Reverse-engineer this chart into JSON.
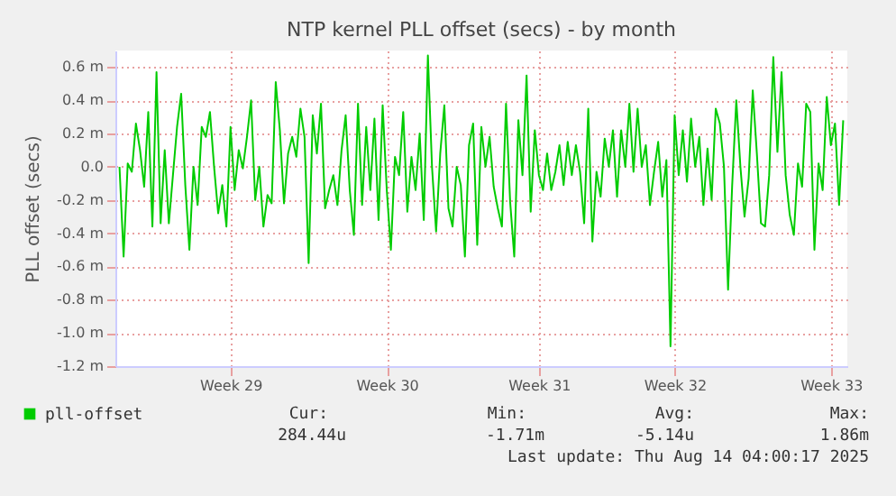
{
  "chart_data": {
    "type": "line",
    "title": "NTP kernel PLL offset (secs) - by month",
    "ylabel": "PLL offset (secs)",
    "categories": [
      null,
      null,
      null,
      null,
      null,
      null,
      null,
      null,
      null,
      null,
      null,
      null,
      null,
      null,
      null,
      null,
      null,
      null,
      null,
      null,
      null,
      null,
      null,
      null,
      null,
      null,
      null,
      "Week 29",
      null,
      null,
      null,
      null,
      null,
      null,
      null,
      null,
      null,
      null,
      null,
      null,
      null,
      null,
      null,
      null,
      null,
      null,
      null,
      null,
      null,
      null,
      null,
      null,
      null,
      null,
      null,
      null,
      null,
      null,
      null,
      null,
      null,
      null,
      null,
      null,
      null,
      "Week 30",
      null,
      null,
      null,
      null,
      null,
      null,
      null,
      null,
      null,
      null,
      null,
      null,
      null,
      null,
      null,
      null,
      null,
      null,
      null,
      null,
      null,
      null,
      null,
      null,
      null,
      null,
      null,
      null,
      null,
      null,
      null,
      null,
      null,
      null,
      null,
      null,
      "Week 31",
      null,
      null,
      null,
      null,
      null,
      null,
      null,
      null,
      null,
      null,
      null,
      null,
      null,
      null,
      null,
      null,
      null,
      null,
      null,
      null,
      null,
      null,
      null,
      null,
      null,
      null,
      null,
      null,
      null,
      null,
      null,
      null,
      "Week 32",
      null,
      null,
      null,
      null,
      null,
      null,
      null,
      null,
      null,
      null,
      null,
      null,
      null,
      null,
      null,
      null,
      null,
      null,
      null,
      null,
      null,
      null,
      null,
      null,
      null,
      null,
      null,
      null,
      null,
      null,
      null,
      null,
      null,
      null,
      null,
      null,
      null,
      "Week 33",
      null,
      null,
      null
    ],
    "ylim": [
      -1.2,
      0.7
    ],
    "yticks": [
      {
        "value": 0.6,
        "label": "0.6 m"
      },
      {
        "value": 0.4,
        "label": "0.4 m"
      },
      {
        "value": 0.2,
        "label": "0.2 m"
      },
      {
        "value": 0.0,
        "label": "0.0"
      },
      {
        "value": -0.2,
        "label": "-0.2 m"
      },
      {
        "value": -0.4,
        "label": "-0.4 m"
      },
      {
        "value": -0.6,
        "label": "-0.6 m"
      },
      {
        "value": -0.8,
        "label": "-0.8 m"
      },
      {
        "value": -1.0,
        "label": "-1.0 m"
      },
      {
        "value": -1.2,
        "label": "-1.2 m"
      }
    ],
    "series": [
      {
        "name": "pll-offset",
        "color": "#00cc00",
        "values": [
          0.0,
          -0.54,
          0.02,
          -0.03,
          0.26,
          0.1,
          -0.12,
          0.33,
          -0.36,
          0.57,
          -0.34,
          0.1,
          -0.34,
          -0.05,
          0.24,
          0.44,
          -0.11,
          -0.5,
          0.0,
          -0.23,
          0.24,
          0.18,
          0.33,
          0.0,
          -0.28,
          -0.11,
          -0.36,
          0.24,
          -0.14,
          0.1,
          -0.01,
          0.18,
          0.4,
          -0.2,
          0.0,
          -0.36,
          -0.17,
          -0.22,
          0.51,
          0.22,
          -0.22,
          0.08,
          0.18,
          0.06,
          0.35,
          0.18,
          -0.58,
          0.31,
          0.08,
          0.38,
          -0.25,
          -0.14,
          -0.05,
          -0.23,
          0.1,
          0.31,
          -0.14,
          -0.41,
          0.38,
          -0.23,
          0.24,
          -0.14,
          0.29,
          -0.32,
          0.37,
          -0.14,
          -0.5,
          0.06,
          -0.05,
          0.33,
          -0.27,
          0.06,
          -0.14,
          0.2,
          -0.32,
          0.67,
          0.0,
          -0.39,
          0.08,
          0.37,
          -0.25,
          -0.36,
          0.0,
          -0.11,
          -0.54,
          0.13,
          0.26,
          -0.47,
          0.24,
          0.0,
          0.18,
          -0.12,
          -0.25,
          -0.36,
          0.38,
          -0.21,
          -0.54,
          0.28,
          -0.05,
          0.55,
          -0.27,
          0.22,
          -0.05,
          -0.14,
          0.08,
          -0.14,
          -0.03,
          0.13,
          -0.11,
          0.15,
          -0.05,
          0.13,
          -0.03,
          -0.34,
          0.35,
          -0.45,
          -0.03,
          -0.18,
          0.17,
          0.0,
          0.22,
          -0.18,
          0.22,
          0.0,
          0.38,
          -0.03,
          0.35,
          0.0,
          0.13,
          -0.23,
          -0.03,
          0.15,
          -0.18,
          0.04,
          -1.08,
          0.31,
          -0.05,
          0.22,
          -0.09,
          0.29,
          0.0,
          0.18,
          -0.23,
          0.11,
          -0.2,
          0.35,
          0.26,
          0.0,
          -0.74,
          -0.11,
          0.4,
          0.0,
          -0.3,
          -0.07,
          0.46,
          0.08,
          -0.34,
          -0.36,
          -0.05,
          0.66,
          0.09,
          0.57,
          -0.05,
          -0.29,
          -0.41,
          0.02,
          -0.12,
          0.38,
          0.33,
          -0.5,
          0.02,
          -0.14,
          0.42,
          0.13,
          0.26,
          -0.23,
          0.28
        ]
      }
    ],
    "annotations": [
      "Cur:",
      "Min:",
      "Avg:",
      "Max:",
      "284.44u",
      "-1.71m",
      "-5.14u",
      "1.86m",
      "Last update: Thu Aug 14 04:00:17 2025"
    ],
    "grid": true,
    "legend": "bottom",
    "marker": "none",
    "line_style": "solid"
  }
}
